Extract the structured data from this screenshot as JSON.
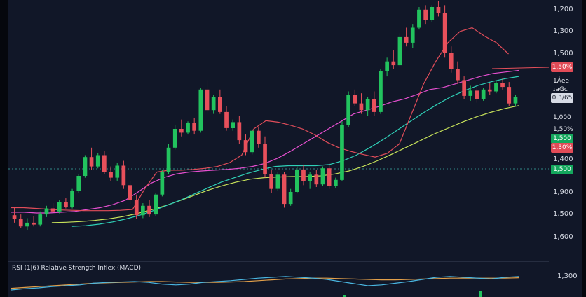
{
  "chart_data": {
    "type": "candlestick",
    "indicator_title": "RSI (1ǀ6) Relative Strength Inflex (MACD)",
    "colors": {
      "up": "#22c35e",
      "down": "#e8505b",
      "bg": "#111728",
      "ma_red": "#e14d5a",
      "ma_pink": "#e64fd0",
      "ma_teal": "#2fd1b8",
      "ma_yellow": "#c8e35a",
      "rsi_blue": "#4ab6e0",
      "rsi_orange": "#e3a04a"
    },
    "y_axis_labels": [
      "1,200",
      "1,300",
      "1,500",
      "1,000",
      "1,400",
      "1,900",
      "1,500",
      "1,600"
    ],
    "price_tags": [
      {
        "text": "1,50%",
        "style": "red"
      },
      {
        "text": "1Áеe",
        "style": "plain"
      },
      {
        "text": "ɪаGс",
        "style": "plain"
      },
      {
        "text": "0.3/65",
        "style": "box"
      },
      {
        "text": "1,000",
        "style": "plain"
      },
      {
        "text": "1,50%",
        "style": "plain"
      },
      {
        "text": "1,500",
        "style": "green"
      },
      {
        "text": "1,30%",
        "style": "red"
      },
      {
        "text": "1,500",
        "style": "green"
      }
    ],
    "rsi_axis_label": "1,300",
    "candles": [
      [
        1230,
        1250,
        1210,
        1220
      ],
      [
        1220,
        1232,
        1195,
        1200
      ],
      [
        1200,
        1222,
        1190,
        1210
      ],
      [
        1210,
        1228,
        1200,
        1205
      ],
      [
        1205,
        1240,
        1200,
        1232
      ],
      [
        1232,
        1255,
        1225,
        1248
      ],
      [
        1248,
        1262,
        1238,
        1240
      ],
      [
        1240,
        1270,
        1235,
        1265
      ],
      [
        1265,
        1275,
        1248,
        1252
      ],
      [
        1252,
        1300,
        1248,
        1295
      ],
      [
        1295,
        1340,
        1290,
        1335
      ],
      [
        1335,
        1390,
        1330,
        1385
      ],
      [
        1385,
        1410,
        1350,
        1360
      ],
      [
        1360,
        1395,
        1355,
        1390
      ],
      [
        1390,
        1402,
        1340,
        1345
      ],
      [
        1345,
        1360,
        1320,
        1330
      ],
      [
        1330,
        1370,
        1322,
        1362
      ],
      [
        1362,
        1375,
        1300,
        1310
      ],
      [
        1310,
        1320,
        1260,
        1270
      ],
      [
        1270,
        1285,
        1220,
        1230
      ],
      [
        1230,
        1262,
        1222,
        1255
      ],
      [
        1255,
        1270,
        1225,
        1232
      ],
      [
        1232,
        1290,
        1228,
        1285
      ],
      [
        1285,
        1350,
        1280,
        1345
      ],
      [
        1345,
        1420,
        1340,
        1410
      ],
      [
        1410,
        1470,
        1405,
        1460
      ],
      [
        1460,
        1485,
        1440,
        1450
      ],
      [
        1450,
        1480,
        1445,
        1475
      ],
      [
        1475,
        1490,
        1445,
        1455
      ],
      [
        1455,
        1570,
        1450,
        1565
      ],
      [
        1565,
        1590,
        1500,
        1510
      ],
      [
        1510,
        1550,
        1500,
        1545
      ],
      [
        1545,
        1565,
        1500,
        1505
      ],
      [
        1505,
        1520,
        1455,
        1462
      ],
      [
        1462,
        1485,
        1455,
        1478
      ],
      [
        1478,
        1495,
        1420,
        1430
      ],
      [
        1430,
        1445,
        1390,
        1398
      ],
      [
        1398,
        1460,
        1392,
        1455
      ],
      [
        1455,
        1465,
        1410,
        1420
      ],
      [
        1420,
        1440,
        1330,
        1340
      ],
      [
        1340,
        1350,
        1290,
        1300
      ],
      [
        1300,
        1345,
        1295,
        1338
      ],
      [
        1338,
        1345,
        1250,
        1260
      ],
      [
        1260,
        1300,
        1255,
        1292
      ],
      [
        1292,
        1360,
        1288,
        1352
      ],
      [
        1352,
        1365,
        1310,
        1320
      ],
      [
        1320,
        1345,
        1300,
        1338
      ],
      [
        1338,
        1350,
        1305,
        1312
      ],
      [
        1312,
        1360,
        1308,
        1355
      ],
      [
        1355,
        1368,
        1300,
        1308
      ],
      [
        1308,
        1330,
        1302,
        1324
      ],
      [
        1324,
        1480,
        1320,
        1470
      ],
      [
        1470,
        1560,
        1465,
        1550
      ],
      [
        1550,
        1565,
        1520,
        1528
      ],
      [
        1528,
        1555,
        1500,
        1510
      ],
      [
        1510,
        1545,
        1495,
        1540
      ],
      [
        1540,
        1560,
        1495,
        1505
      ],
      [
        1505,
        1620,
        1500,
        1615
      ],
      [
        1615,
        1650,
        1600,
        1640
      ],
      [
        1640,
        1670,
        1620,
        1630
      ],
      [
        1630,
        1715,
        1625,
        1705
      ],
      [
        1705,
        1730,
        1680,
        1690
      ],
      [
        1690,
        1740,
        1675,
        1730
      ],
      [
        1730,
        1785,
        1725,
        1778
      ],
      [
        1778,
        1790,
        1740,
        1750
      ],
      [
        1750,
        1790,
        1745,
        1785
      ],
      [
        1785,
        1800,
        1760,
        1770
      ],
      [
        1770,
        1790,
        1650,
        1662
      ],
      [
        1662,
        1680,
        1610,
        1620
      ],
      [
        1620,
        1640,
        1580,
        1590
      ],
      [
        1590,
        1600,
        1540,
        1548
      ],
      [
        1548,
        1575,
        1535,
        1562
      ],
      [
        1562,
        1572,
        1530,
        1540
      ],
      [
        1540,
        1570,
        1535,
        1565
      ],
      [
        1565,
        1582,
        1550,
        1560
      ],
      [
        1560,
        1590,
        1555,
        1582
      ],
      [
        1582,
        1595,
        1565,
        1572
      ],
      [
        1572,
        1585,
        1520,
        1528
      ],
      [
        1528,
        1550,
        1520,
        1545
      ]
    ],
    "ma_red": [
      1250,
      1250,
      1248,
      1246,
      1244,
      1243,
      1242,
      1242,
      1242,
      1243,
      1245,
      1300,
      1345,
      1350,
      1350,
      1352,
      1355,
      1360,
      1370,
      1390,
      1460,
      1482,
      1478,
      1470,
      1460,
      1445,
      1425,
      1410,
      1400,
      1392,
      1385,
      1395,
      1420,
      1500,
      1580,
      1640,
      1690,
      1720,
      1730,
      1708,
      1690,
      1660
    ],
    "ma_pink": [
      1238,
      1238,
      1236,
      1236,
      1238,
      1240,
      1245,
      1250,
      1258,
      1270,
      1292,
      1315,
      1330,
      1340,
      1345,
      1348,
      1350,
      1352,
      1355,
      1360,
      1368,
      1382,
      1400,
      1420,
      1440,
      1460,
      1480,
      1500,
      1510,
      1520,
      1532,
      1540,
      1552,
      1565,
      1570,
      1580,
      1590,
      1600,
      1608,
      1612,
      1616
    ],
    "ma_teal": [
      1200,
      1202,
      1206,
      1212,
      1220,
      1230,
      1242,
      1256,
      1270,
      1286,
      1302,
      1318,
      1330,
      1342,
      1352,
      1360,
      1362,
      1362,
      1362,
      1365,
      1375,
      1390,
      1410,
      1432,
      1456,
      1480,
      1504,
      1526,
      1546,
      1562,
      1576,
      1586,
      1594,
      1600
    ],
    "ma_yellow": [
      1210,
      1211,
      1213,
      1216,
      1220,
      1226,
      1234,
      1244,
      1255,
      1268,
      1282,
      1296,
      1308,
      1318,
      1326,
      1330,
      1332,
      1333,
      1333,
      1335,
      1340,
      1348,
      1360,
      1375,
      1392,
      1410,
      1428,
      1446,
      1462,
      1478,
      1492,
      1504,
      1514,
      1522
    ],
    "rsi_blue": [
      30,
      33,
      35,
      38,
      40,
      42,
      46,
      48,
      49,
      50,
      48,
      44,
      42,
      44,
      48,
      50,
      52,
      55,
      58,
      60,
      62,
      60,
      58,
      55,
      50,
      45,
      40,
      42,
      46,
      50,
      55,
      60,
      62,
      60,
      58,
      56,
      60,
      62
    ],
    "rsi_orange": [
      34,
      36,
      38,
      40,
      42,
      44,
      46,
      47,
      48,
      49,
      50,
      50,
      49,
      48,
      48,
      48,
      49,
      50,
      52,
      54,
      56,
      57,
      58,
      58,
      57,
      56,
      55,
      54,
      54,
      55,
      56,
      57,
      58,
      58,
      58,
      58,
      58,
      59
    ]
  }
}
